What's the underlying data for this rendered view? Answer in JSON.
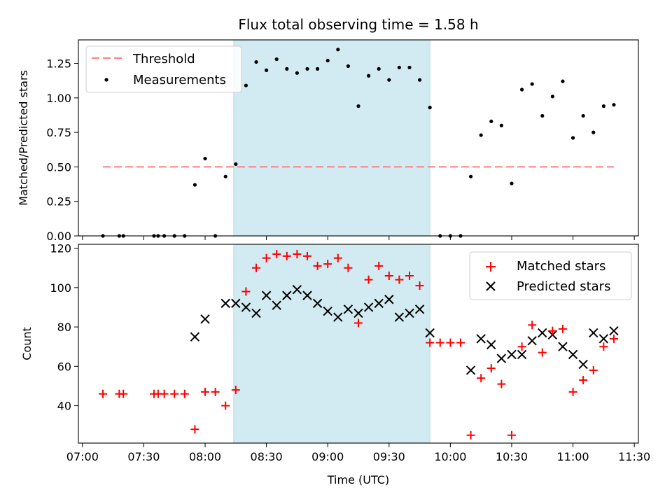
{
  "chart_data": [
    {
      "type": "scatter",
      "title": "Flux total observing time = 1.58 h",
      "xlabel": "",
      "ylabel": "Matched/Predicted stars",
      "ylim": [
        0,
        1.42
      ],
      "xlim": [
        "06:58",
        "11:32"
      ],
      "yticks": [
        "0.00",
        "0.25",
        "0.50",
        "0.75",
        "1.00",
        "1.25"
      ],
      "shaded_span": {
        "start": "08:14",
        "end": "09:50",
        "color": "#add8e6"
      },
      "legend_position": "top-left",
      "threshold": {
        "name": "Threshold",
        "y": 0.5,
        "x_start": "07:10",
        "x_end": "11:20",
        "color": "#ff7f7f"
      },
      "series": [
        {
          "name": "Measurements",
          "color": "#000000",
          "points": [
            [
              "07:10",
              0.0
            ],
            [
              "07:18",
              0.0
            ],
            [
              "07:20",
              0.0
            ],
            [
              "07:35",
              0.0
            ],
            [
              "07:37",
              0.0
            ],
            [
              "07:40",
              0.0
            ],
            [
              "07:45",
              0.0
            ],
            [
              "07:50",
              0.0
            ],
            [
              "07:55",
              0.37
            ],
            [
              "08:00",
              0.56
            ],
            [
              "08:05",
              0.0
            ],
            [
              "08:10",
              0.43
            ],
            [
              "08:15",
              0.52
            ],
            [
              "08:20",
              1.09
            ],
            [
              "08:25",
              1.26
            ],
            [
              "08:30",
              1.2
            ],
            [
              "08:35",
              1.28
            ],
            [
              "08:40",
              1.21
            ],
            [
              "08:45",
              1.18
            ],
            [
              "08:50",
              1.21
            ],
            [
              "08:55",
              1.21
            ],
            [
              "09:00",
              1.27
            ],
            [
              "09:05",
              1.35
            ],
            [
              "09:10",
              1.23
            ],
            [
              "09:15",
              0.94
            ],
            [
              "09:20",
              1.16
            ],
            [
              "09:25",
              1.21
            ],
            [
              "09:30",
              1.13
            ],
            [
              "09:35",
              1.22
            ],
            [
              "09:40",
              1.22
            ],
            [
              "09:45",
              1.13
            ],
            [
              "09:50",
              0.93
            ],
            [
              "09:55",
              0.0
            ],
            [
              "10:00",
              0.0
            ],
            [
              "10:05",
              0.0
            ],
            [
              "10:10",
              0.43
            ],
            [
              "10:15",
              0.73
            ],
            [
              "10:20",
              0.83
            ],
            [
              "10:25",
              0.8
            ],
            [
              "10:30",
              0.38
            ],
            [
              "10:35",
              1.06
            ],
            [
              "10:40",
              1.1
            ],
            [
              "10:45",
              0.87
            ],
            [
              "10:50",
              1.01
            ],
            [
              "10:55",
              1.12
            ],
            [
              "11:00",
              0.71
            ],
            [
              "11:05",
              0.87
            ],
            [
              "11:10",
              0.75
            ],
            [
              "11:15",
              0.94
            ],
            [
              "11:20",
              0.95
            ]
          ]
        }
      ]
    },
    {
      "type": "scatter",
      "xlabel": "Time (UTC)",
      "ylabel": "Count",
      "ylim": [
        21,
        122
      ],
      "xlim": [
        "06:58",
        "11:32"
      ],
      "xticks": [
        "07:00",
        "07:30",
        "08:00",
        "08:30",
        "09:00",
        "09:30",
        "10:00",
        "10:30",
        "11:00",
        "11:30"
      ],
      "yticks": [
        "40",
        "60",
        "80",
        "100",
        "120"
      ],
      "shaded_span": {
        "start": "08:14",
        "end": "09:50",
        "color": "#add8e6"
      },
      "legend_position": "top-right",
      "series": [
        {
          "name": "Matched stars",
          "marker": "plus",
          "color": "#ff0000",
          "points": [
            [
              "07:10",
              46
            ],
            [
              "07:18",
              46
            ],
            [
              "07:20",
              46
            ],
            [
              "07:35",
              46
            ],
            [
              "07:37",
              46
            ],
            [
              "07:40",
              46
            ],
            [
              "07:45",
              46
            ],
            [
              "07:50",
              46
            ],
            [
              "07:55",
              28
            ],
            [
              "08:00",
              47
            ],
            [
              "08:05",
              47
            ],
            [
              "08:10",
              40
            ],
            [
              "08:15",
              48
            ],
            [
              "08:20",
              98
            ],
            [
              "08:25",
              110
            ],
            [
              "08:30",
              115
            ],
            [
              "08:35",
              117
            ],
            [
              "08:40",
              116
            ],
            [
              "08:45",
              117
            ],
            [
              "08:50",
              116
            ],
            [
              "08:55",
              111
            ],
            [
              "09:00",
              112
            ],
            [
              "09:05",
              115
            ],
            [
              "09:10",
              110
            ],
            [
              "09:15",
              82
            ],
            [
              "09:20",
              104
            ],
            [
              "09:25",
              111
            ],
            [
              "09:30",
              106
            ],
            [
              "09:35",
              104
            ],
            [
              "09:40",
              106
            ],
            [
              "09:45",
              101
            ],
            [
              "09:50",
              72
            ],
            [
              "09:55",
              72
            ],
            [
              "10:00",
              72
            ],
            [
              "10:05",
              72
            ],
            [
              "10:10",
              25
            ],
            [
              "10:15",
              54
            ],
            [
              "10:20",
              59
            ],
            [
              "10:25",
              51
            ],
            [
              "10:30",
              25
            ],
            [
              "10:35",
              70
            ],
            [
              "10:40",
              81
            ],
            [
              "10:45",
              67
            ],
            [
              "10:50",
              78
            ],
            [
              "10:55",
              79
            ],
            [
              "11:00",
              47
            ],
            [
              "11:05",
              53
            ],
            [
              "11:10",
              58
            ],
            [
              "11:15",
              70
            ],
            [
              "11:20",
              74
            ]
          ]
        },
        {
          "name": "Predicted stars",
          "marker": "x",
          "color": "#000000",
          "points": [
            [
              "07:55",
              75
            ],
            [
              "08:00",
              84
            ],
            [
              "08:10",
              92
            ],
            [
              "08:15",
              92
            ],
            [
              "08:20",
              90
            ],
            [
              "08:25",
              87
            ],
            [
              "08:30",
              96
            ],
            [
              "08:35",
              91
            ],
            [
              "08:40",
              96
            ],
            [
              "08:45",
              99
            ],
            [
              "08:50",
              96
            ],
            [
              "08:55",
              92
            ],
            [
              "09:00",
              88
            ],
            [
              "09:05",
              85
            ],
            [
              "09:10",
              89
            ],
            [
              "09:15",
              87
            ],
            [
              "09:20",
              90
            ],
            [
              "09:25",
              92
            ],
            [
              "09:30",
              94
            ],
            [
              "09:35",
              85
            ],
            [
              "09:40",
              87
            ],
            [
              "09:45",
              89
            ],
            [
              "09:50",
              77
            ],
            [
              "10:10",
              58
            ],
            [
              "10:15",
              74
            ],
            [
              "10:20",
              71
            ],
            [
              "10:25",
              64
            ],
            [
              "10:30",
              66
            ],
            [
              "10:35",
              66
            ],
            [
              "10:40",
              73
            ],
            [
              "10:45",
              77
            ],
            [
              "10:50",
              76
            ],
            [
              "10:55",
              70
            ],
            [
              "11:00",
              66
            ],
            [
              "11:05",
              61
            ],
            [
              "11:10",
              77
            ],
            [
              "11:15",
              74
            ],
            [
              "11:20",
              78
            ]
          ]
        }
      ]
    }
  ]
}
